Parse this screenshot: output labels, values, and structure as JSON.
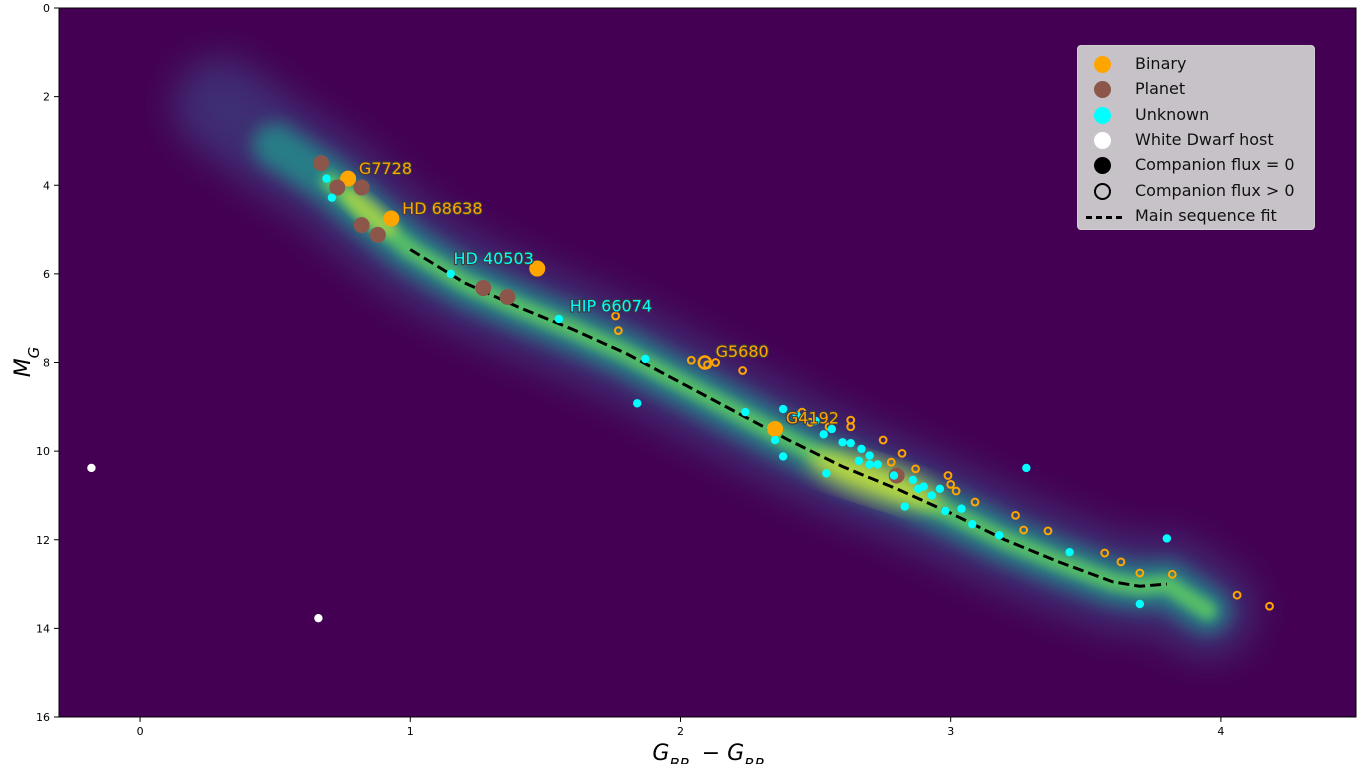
{
  "chart_data": {
    "type": "scatter",
    "title": "",
    "xlabel": "G_BP − G_RP",
    "ylabel": "M_G",
    "xlim": [
      -0.3,
      4.5
    ],
    "ylim": [
      16,
      0
    ],
    "y_inverted": true,
    "grid": false,
    "background": "density heatmap of field stars (viridis colormap)",
    "x_ticks": [
      "0",
      "1",
      "2",
      "3",
      "4"
    ],
    "y_ticks": [
      "0",
      "2",
      "4",
      "6",
      "8",
      "10",
      "12",
      "14",
      "16"
    ],
    "legend_position": "top-right",
    "legend": [
      {
        "label": "Binary",
        "color": "#ffa500",
        "marker": "filled"
      },
      {
        "label": "Planet",
        "color": "#8c564b",
        "marker": "filled"
      },
      {
        "label": "Unknown",
        "color": "#00ffff",
        "marker": "filled"
      },
      {
        "label": "White Dwarf host",
        "color": "#ffffff",
        "marker": "filled"
      },
      {
        "label": "Companion flux = 0",
        "color": "#000000",
        "marker": "filled"
      },
      {
        "label": "Companion flux > 0",
        "color": "#000000",
        "marker": "open"
      },
      {
        "label": "Main sequence fit",
        "color": "#000000",
        "marker": "dashed-line"
      }
    ],
    "main_sequence_fit": {
      "x": [
        1.0,
        1.2,
        1.4,
        1.6,
        1.8,
        2.0,
        2.2,
        2.4,
        2.6,
        2.8,
        3.0,
        3.2,
        3.4,
        3.6,
        3.7,
        3.8
      ],
      "y": [
        5.45,
        6.2,
        6.75,
        7.25,
        7.8,
        8.45,
        9.1,
        9.75,
        10.35,
        10.85,
        11.4,
        12.0,
        12.5,
        12.95,
        13.05,
        13.0
      ]
    },
    "series": [
      {
        "name": "Binary",
        "color": "#ffa500",
        "large_filled": [
          [
            0.77,
            3.85
          ],
          [
            0.93,
            4.75
          ],
          [
            1.47,
            5.88
          ],
          [
            2.35,
            9.5
          ]
        ],
        "open": [
          [
            1.76,
            6.95
          ],
          [
            1.77,
            7.28
          ],
          [
            2.04,
            7.95
          ],
          [
            2.1,
            8.05
          ],
          [
            2.13,
            8.0
          ],
          [
            2.23,
            8.18
          ],
          [
            2.45,
            9.12
          ],
          [
            2.48,
            9.35
          ],
          [
            2.55,
            9.45
          ],
          [
            2.63,
            9.3
          ],
          [
            2.63,
            9.45
          ],
          [
            2.75,
            9.75
          ],
          [
            2.78,
            10.25
          ],
          [
            2.82,
            10.05
          ],
          [
            2.87,
            10.4
          ],
          [
            2.99,
            10.55
          ],
          [
            3.0,
            10.75
          ],
          [
            3.02,
            10.9
          ],
          [
            3.09,
            11.15
          ],
          [
            3.24,
            11.45
          ],
          [
            3.27,
            11.78
          ],
          [
            3.36,
            11.8
          ],
          [
            3.57,
            12.3
          ],
          [
            3.63,
            12.5
          ],
          [
            3.7,
            12.75
          ],
          [
            3.82,
            12.78
          ],
          [
            4.06,
            13.25
          ],
          [
            4.18,
            13.5
          ]
        ],
        "large_open": [
          [
            2.09,
            8.0
          ]
        ]
      },
      {
        "name": "Planet",
        "color": "#8c564b",
        "large_filled": [
          [
            0.67,
            3.5
          ],
          [
            0.73,
            4.05
          ],
          [
            0.82,
            4.05
          ],
          [
            0.82,
            4.9
          ],
          [
            0.88,
            5.12
          ],
          [
            1.27,
            6.32
          ],
          [
            1.36,
            6.52
          ],
          [
            2.8,
            10.55
          ]
        ]
      },
      {
        "name": "Unknown",
        "color": "#00ffff",
        "small_filled": [
          [
            0.69,
            3.85
          ],
          [
            0.71,
            4.28
          ],
          [
            1.15,
            6.0
          ],
          [
            1.55,
            7.02
          ],
          [
            1.84,
            8.92
          ],
          [
            1.87,
            7.92
          ],
          [
            2.24,
            9.12
          ],
          [
            2.35,
            9.75
          ],
          [
            2.38,
            10.12
          ],
          [
            2.38,
            9.05
          ],
          [
            2.43,
            9.2
          ],
          [
            2.5,
            9.32
          ],
          [
            2.53,
            9.62
          ],
          [
            2.54,
            10.5
          ],
          [
            2.56,
            9.5
          ],
          [
            2.6,
            9.8
          ],
          [
            2.63,
            9.82
          ],
          [
            2.66,
            10.22
          ],
          [
            2.67,
            9.95
          ],
          [
            2.7,
            10.1
          ],
          [
            2.7,
            10.3
          ],
          [
            2.73,
            10.3
          ],
          [
            2.79,
            10.55
          ],
          [
            2.83,
            11.25
          ],
          [
            2.86,
            10.65
          ],
          [
            2.88,
            10.85
          ],
          [
            2.9,
            10.8
          ],
          [
            2.93,
            11.0
          ],
          [
            2.96,
            10.85
          ],
          [
            2.98,
            11.35
          ],
          [
            3.04,
            11.3
          ],
          [
            3.08,
            11.65
          ],
          [
            3.18,
            11.9
          ],
          [
            3.28,
            10.38
          ],
          [
            3.44,
            12.28
          ],
          [
            3.7,
            13.45
          ],
          [
            3.8,
            11.97
          ]
        ]
      },
      {
        "name": "White Dwarf host",
        "color": "#ffffff",
        "small_filled": [
          [
            -0.18,
            10.38
          ],
          [
            0.66,
            13.77
          ]
        ]
      }
    ],
    "annotations": [
      {
        "text": "G7728",
        "color": "#ffa500",
        "x": 0.81,
        "y": 3.75
      },
      {
        "text": "HD 68638",
        "color": "#ffa500",
        "x": 0.97,
        "y": 4.65
      },
      {
        "text": "HD 40503",
        "color": "#00ffff",
        "x": 1.16,
        "y": 5.78
      },
      {
        "text": "HIP 66074",
        "color": "#00ffff",
        "x": 1.59,
        "y": 6.85
      },
      {
        "text": "G5680",
        "color": "#ffa500",
        "x": 2.13,
        "y": 7.88
      },
      {
        "text": "G4192",
        "color": "#ffa500",
        "x": 2.39,
        "y": 9.38
      }
    ]
  }
}
